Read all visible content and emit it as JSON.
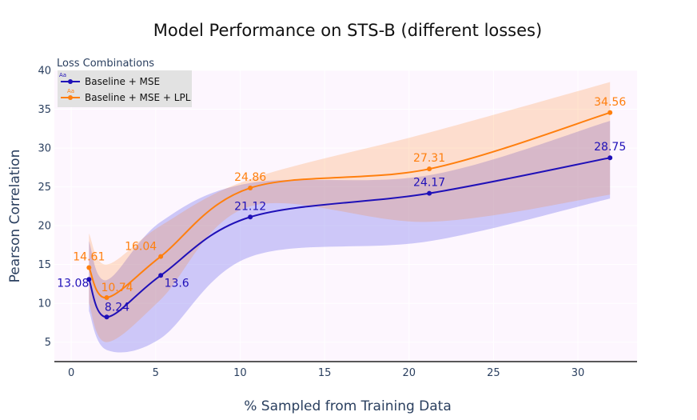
{
  "chart_data": {
    "type": "line",
    "title": "Model Performance on STS-B (different losses)",
    "xlabel": "% Sampled from Training Data",
    "ylabel": "Pearson Correlation",
    "xlim": [
      -1,
      33.5
    ],
    "ylim": [
      2.5,
      40
    ],
    "xticks": [
      0,
      5,
      10,
      15,
      20,
      25,
      30
    ],
    "yticks": [
      5,
      10,
      15,
      20,
      25,
      30,
      35,
      40
    ],
    "grid": true,
    "legend": {
      "title": "Loss Combinations",
      "position": "top-left",
      "glyph_text": "Aa"
    },
    "series": [
      {
        "name": "Baseline + MSE",
        "color": "#1f10b8",
        "band_color": "rgba(95, 90, 235, 0.30)",
        "x": [
          1.05,
          2.1,
          5.3,
          10.6,
          21.2,
          31.9
        ],
        "values": [
          13.08,
          8.24,
          13.6,
          21.12,
          24.17,
          28.75
        ],
        "labels": [
          "13.08",
          "8.24",
          "13.6",
          "21.12",
          "24.17",
          "28.75"
        ],
        "upper": [
          18.0,
          13.0,
          20.5,
          25.5,
          26.5,
          33.5
        ],
        "lower": [
          9.0,
          4.0,
          5.5,
          16.0,
          18.0,
          23.5
        ]
      },
      {
        "name": "Baseline + MSE + LPL",
        "color": "#ff7f0e",
        "band_color": "rgba(255, 127, 14, 0.20)",
        "x": [
          1.05,
          2.1,
          5.3,
          10.6,
          21.2,
          31.9
        ],
        "values": [
          14.61,
          10.74,
          16.04,
          24.86,
          27.31,
          34.56
        ],
        "labels": [
          "14.61",
          "10.74",
          "16.04",
          "24.86",
          "27.31",
          "34.56"
        ],
        "upper": [
          19.0,
          15.0,
          20.0,
          26.0,
          32.0,
          38.5
        ],
        "lower": [
          10.0,
          5.0,
          10.5,
          22.5,
          20.5,
          24.0
        ]
      }
    ]
  }
}
